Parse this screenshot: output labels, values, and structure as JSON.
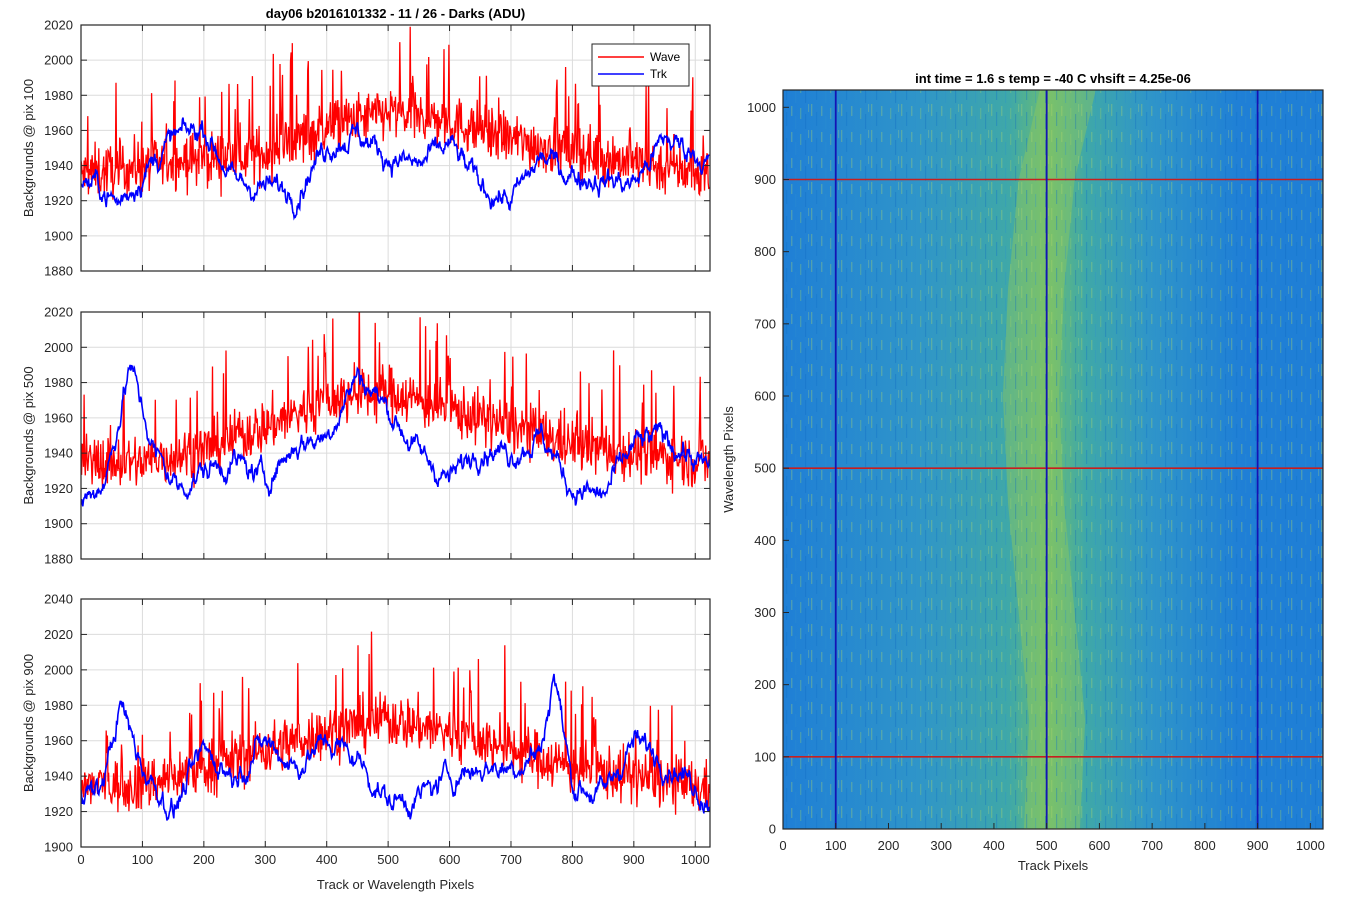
{
  "figure": {
    "background": "#ffffff",
    "colors": {
      "wave": "#ff0000",
      "trk": "#0000ff",
      "axis": "#262626",
      "grid": "#dcdcdc",
      "marker_row": "#c81e1e",
      "marker_col": "#1414b4"
    }
  },
  "chart_data": [
    {
      "type": "line",
      "title": "day06 b2016101332 - 11 / 26 - Darks (ADU)",
      "xlabel": "",
      "ylabel": "Backgrounds @ pix 100",
      "xlim": [
        0,
        1024
      ],
      "ylim": [
        1880,
        2020
      ],
      "xticks": [
        0,
        100,
        200,
        300,
        400,
        500,
        600,
        700,
        800,
        900,
        1000
      ],
      "yticks": [
        1880,
        1900,
        1920,
        1940,
        1960,
        1980,
        2000,
        2020
      ],
      "grid": true,
      "legend": {
        "placement": "top-right",
        "entries": [
          "Wave",
          "Trk"
        ]
      },
      "series": [
        {
          "name": "Wave",
          "color": "#ff0000",
          "x": [
            0,
            100,
            200,
            300,
            400,
            500,
            600,
            700,
            800,
            900,
            1024
          ],
          "y": [
            1935,
            1940,
            1944,
            1947,
            1962,
            1970,
            1965,
            1955,
            1948,
            1942,
            1935
          ]
        },
        {
          "name": "Trk",
          "color": "#0000ff",
          "x": [
            0,
            30,
            60,
            100,
            150,
            200,
            250,
            300,
            350,
            400,
            450,
            500,
            550,
            600,
            650,
            700,
            750,
            800,
            850,
            900,
            950,
            1000,
            1024
          ],
          "y": [
            1932,
            1928,
            1918,
            1935,
            1955,
            1962,
            1930,
            1928,
            1925,
            1952,
            1958,
            1945,
            1940,
            1952,
            1928,
            1920,
            1945,
            1935,
            1932,
            1930,
            1955,
            1948,
            1940
          ]
        }
      ]
    },
    {
      "type": "line",
      "title": "",
      "xlabel": "",
      "ylabel": "Backgrounds @ pix 500",
      "xlim": [
        0,
        1024
      ],
      "ylim": [
        1880,
        2020
      ],
      "xticks": [
        0,
        100,
        200,
        300,
        400,
        500,
        600,
        700,
        800,
        900,
        1000
      ],
      "yticks": [
        1880,
        1900,
        1920,
        1940,
        1960,
        1980,
        2000,
        2020
      ],
      "grid": true,
      "series": [
        {
          "name": "Wave",
          "color": "#ff0000",
          "x": [
            0,
            100,
            200,
            300,
            400,
            500,
            600,
            700,
            800,
            900,
            1024
          ],
          "y": [
            1935,
            1935,
            1942,
            1955,
            1970,
            1975,
            1965,
            1955,
            1945,
            1940,
            1935
          ]
        },
        {
          "name": "Trk",
          "color": "#0000ff",
          "x": [
            0,
            40,
            80,
            120,
            160,
            200,
            250,
            300,
            350,
            400,
            450,
            500,
            550,
            600,
            650,
            700,
            750,
            800,
            850,
            900,
            950,
            1000,
            1024
          ],
          "y": [
            1912,
            1925,
            1990,
            1940,
            1920,
            1930,
            1935,
            1925,
            1945,
            1950,
            1985,
            1965,
            1940,
            1925,
            1945,
            1940,
            1950,
            1920,
            1915,
            1945,
            1950,
            1935,
            1930
          ]
        }
      ]
    },
    {
      "type": "line",
      "title": "",
      "xlabel": "Track or Wavelength Pixels",
      "ylabel": "Backgrounds @ pix 900",
      "xlim": [
        0,
        1024
      ],
      "ylim": [
        1900,
        2040
      ],
      "xticks": [
        0,
        100,
        200,
        300,
        400,
        500,
        600,
        700,
        800,
        900,
        1000
      ],
      "yticks": [
        1900,
        1920,
        1940,
        1960,
        1980,
        2000,
        2020,
        2040
      ],
      "grid": true,
      "series": [
        {
          "name": "Wave",
          "color": "#ff0000",
          "x": [
            0,
            100,
            200,
            300,
            400,
            500,
            600,
            700,
            800,
            900,
            1024
          ],
          "y": [
            1935,
            1935,
            1945,
            1955,
            1965,
            1972,
            1965,
            1955,
            1945,
            1940,
            1932
          ]
        },
        {
          "name": "Trk",
          "color": "#0000ff",
          "x": [
            0,
            30,
            65,
            100,
            150,
            200,
            250,
            300,
            350,
            400,
            450,
            500,
            550,
            600,
            650,
            700,
            750,
            770,
            800,
            850,
            900,
            950,
            1000,
            1024
          ],
          "y": [
            1935,
            1930,
            1980,
            1945,
            1920,
            1955,
            1940,
            1960,
            1945,
            1960,
            1950,
            1925,
            1928,
            1940,
            1945,
            1945,
            1955,
            2000,
            1935,
            1930,
            1960,
            1950,
            1935,
            1925
          ]
        }
      ]
    },
    {
      "type": "heatmap",
      "title": "int time = 1.6 s   temp = -40 C   vhsift = 4.25e-06",
      "xlabel": "Track Pixels",
      "ylabel": "Wavelength Pixels",
      "xlim": [
        0,
        1024
      ],
      "ylim": [
        0,
        1024
      ],
      "xticks": [
        0,
        100,
        200,
        300,
        400,
        500,
        600,
        700,
        800,
        900,
        1000
      ],
      "yticks": [
        0,
        100,
        200,
        300,
        400,
        500,
        600,
        700,
        800,
        900,
        1000
      ],
      "colormap": [
        "#1f7fd6",
        "#2f95c9",
        "#3fa8a8",
        "#6bbd73"
      ],
      "bright_band_center_x": [
        510,
        520,
        500,
        480,
        470,
        480,
        500,
        540
      ],
      "bright_band_y": [
        0,
        150,
        300,
        450,
        600,
        750,
        900,
        1024
      ],
      "marker_rows": [
        100,
        500,
        900
      ],
      "marker_cols": [
        100,
        500,
        900
      ]
    }
  ]
}
